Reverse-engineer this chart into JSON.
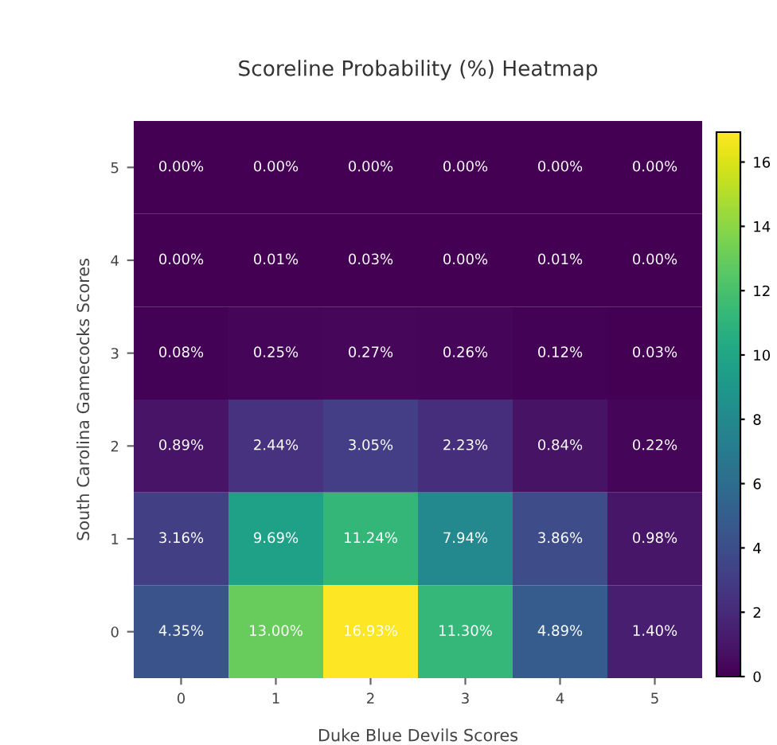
{
  "chart_data": {
    "type": "heatmap",
    "title": "Scoreline Probability (%) Heatmap",
    "xlabel": "Duke Blue Devils Scores",
    "ylabel": "South Carolina Gamecocks Scores",
    "categories": [
      "0",
      "1",
      "2",
      "3",
      "4",
      "5"
    ],
    "y_categories": [
      "5",
      "4",
      "3",
      "2",
      "1",
      "0"
    ],
    "cells": [
      [
        0.0,
        0.0,
        0.0,
        0.0,
        0.0,
        0.0
      ],
      [
        0.0,
        0.01,
        0.03,
        0.0,
        0.01,
        0.0
      ],
      [
        0.08,
        0.25,
        0.27,
        0.26,
        0.12,
        0.03
      ],
      [
        0.89,
        2.44,
        3.05,
        2.23,
        0.84,
        0.22
      ],
      [
        3.16,
        9.69,
        11.24,
        7.94,
        3.86,
        0.98
      ],
      [
        4.35,
        13.0,
        16.93,
        11.3,
        4.89,
        1.4
      ]
    ],
    "cell_labels": [
      [
        "0.00%",
        "0.00%",
        "0.00%",
        "0.00%",
        "0.00%",
        "0.00%"
      ],
      [
        "0.00%",
        "0.01%",
        "0.03%",
        "0.00%",
        "0.01%",
        "0.00%"
      ],
      [
        "0.08%",
        "0.25%",
        "0.27%",
        "0.26%",
        "0.12%",
        "0.03%"
      ],
      [
        "0.89%",
        "2.44%",
        "3.05%",
        "2.23%",
        "0.84%",
        "0.22%"
      ],
      [
        "3.16%",
        "9.69%",
        "11.24%",
        "7.94%",
        "3.86%",
        "0.98%"
      ],
      [
        "4.35%",
        "13.00%",
        "16.93%",
        "11.30%",
        "4.89%",
        "1.40%"
      ]
    ],
    "clim": [
      0,
      16.93
    ],
    "cticks": [
      0,
      2,
      4,
      6,
      8,
      10,
      12,
      14,
      16
    ],
    "grid": false
  }
}
